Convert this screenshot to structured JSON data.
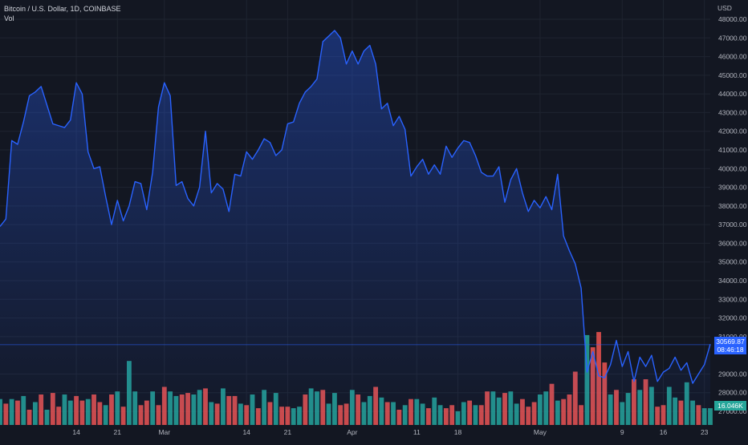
{
  "header": {
    "symbol_line": "Bitcoin / U.S. Dollar, 1D, COINBASE",
    "volume_label": "Vol"
  },
  "price_axis": {
    "currency": "USD",
    "ticks": [
      "48000.00",
      "47000.00",
      "46000.00",
      "45000.00",
      "44000.00",
      "43000.00",
      "42000.00",
      "41000.00",
      "40000.00",
      "39000.00",
      "38000.00",
      "37000.00",
      "36000.00",
      "35000.00",
      "34000.00",
      "33000.00",
      "32000.00",
      "31000.00",
      "29000.00",
      "28000.00",
      "27000.00"
    ],
    "current_price": "30569.87",
    "countdown": "08:46:18",
    "volume_value": "16.046K"
  },
  "time_axis": {
    "labels": [
      "14",
      "21",
      "Mar",
      "14",
      "21",
      "Apr",
      "11",
      "18",
      "May",
      "9",
      "16",
      "23"
    ]
  },
  "colors": {
    "background": "#131722",
    "line": "#2962ff",
    "up_volume": "#26a69a",
    "down_volume": "#ef5350",
    "price_badge": "#2962ff",
    "volume_badge": "#26a69a",
    "grid": "#1f2430"
  },
  "chart_data": {
    "type": "area",
    "series": [
      {
        "name": "Bitcoin / U.S. Dollar",
        "values": [
          36900,
          37300,
          41500,
          41300,
          42500,
          43900,
          44100,
          44400,
          43400,
          42400,
          42300,
          42200,
          42600,
          44600,
          44000,
          40900,
          40000,
          40100,
          38500,
          37000,
          38300,
          37200,
          38000,
          39300,
          39200,
          37800,
          39800,
          43300,
          44600,
          43900,
          39100,
          39300,
          38400,
          38000,
          39000,
          42000,
          38700,
          39200,
          38900,
          37700,
          39700,
          39600,
          40900,
          40500,
          41000,
          41600,
          41400,
          40700,
          41000,
          42400,
          42500,
          43500,
          44100,
          44400,
          44800,
          46800,
          47100,
          47400,
          47000,
          45600,
          46300,
          45600,
          46300,
          46600,
          45600,
          43200,
          43500,
          42300,
          42800,
          42100,
          39600,
          40100,
          40500,
          39700,
          40200,
          39700,
          41200,
          40600,
          41100,
          41500,
          41400,
          40700,
          39800,
          39600,
          39600,
          40100,
          38200,
          39400,
          40000,
          38700,
          37700,
          38300,
          37900,
          38500,
          37800,
          39700,
          36400,
          35600,
          34900,
          33600,
          29100,
          30200,
          28900,
          28800,
          29500,
          30800,
          29400,
          30200,
          28600,
          29900,
          29400,
          30000,
          28600,
          29100,
          29300,
          29900,
          29200,
          29600,
          28500,
          29000,
          29500,
          30600
        ]
      }
    ],
    "volume": {
      "values": [
        1.7,
        1.4,
        1.7,
        1.6,
        1.9,
        1.0,
        1.5,
        2.0,
        1.0,
        2.1,
        1.2,
        2.0,
        1.6,
        1.9,
        1.6,
        1.7,
        2.0,
        1.5,
        1.3,
        2.0,
        2.2,
        1.2,
        4.2,
        2.2,
        1.3,
        1.6,
        2.2,
        1.3,
        2.5,
        2.2,
        1.9,
        2.0,
        2.1,
        2.0,
        2.3,
        2.4,
        1.5,
        1.4,
        2.4,
        1.9,
        1.9,
        1.4,
        1.3,
        2.0,
        1.1,
        2.3,
        1.5,
        2.1,
        1.2,
        1.2,
        1.1,
        1.2,
        2.0,
        2.4,
        2.2,
        2.3,
        1.4,
        2.1,
        1.3,
        1.4,
        2.3,
        2.0,
        1.5,
        1.9,
        2.5,
        1.8,
        1.5,
        1.5,
        1.0,
        1.3,
        1.7,
        1.7,
        1.4,
        1.1,
        1.8,
        1.3,
        1.1,
        1.3,
        0.9,
        1.5,
        1.6,
        1.3,
        1.3,
        2.2,
        2.2,
        1.8,
        2.1,
        2.2,
        1.4,
        1.7,
        1.2,
        1.5,
        2.0,
        2.2,
        2.7,
        1.6,
        1.7,
        2.0,
        3.5,
        1.3,
        5.9,
        5.1,
        6.1,
        4.1,
        2.0,
        2.3,
        1.5,
        2.1,
        3.0,
        2.3,
        3.0,
        2.5,
        1.2,
        1.3,
        2.5,
        1.8,
        1.6,
        2.8,
        1.6,
        1.3,
        1.1,
        1.1
      ],
      "up": [
        1,
        0,
        1,
        0,
        1,
        0,
        1,
        0,
        1,
        0,
        0,
        1,
        1,
        0,
        0,
        1,
        0,
        0,
        1,
        0,
        1,
        0,
        1,
        1,
        0,
        0,
        1,
        0,
        0,
        1,
        1,
        0,
        0,
        1,
        1,
        0,
        1,
        0,
        1,
        0,
        0,
        1,
        0,
        1,
        0,
        1,
        0,
        1,
        0,
        0,
        1,
        1,
        0,
        1,
        1,
        0,
        1,
        1,
        0,
        0,
        1,
        0,
        1,
        1,
        0,
        1,
        0,
        1,
        0,
        1,
        0,
        1,
        1,
        0,
        1,
        1,
        0,
        0,
        1,
        1,
        0,
        1,
        0,
        0,
        1,
        1,
        0,
        1,
        1,
        0,
        0,
        0,
        1,
        1,
        0,
        1,
        0,
        0,
        0,
        0,
        1,
        0,
        0,
        0,
        1,
        0,
        1,
        1,
        0,
        1,
        0,
        1,
        0,
        0,
        1,
        1,
        0,
        1,
        1,
        0,
        1,
        1
      ]
    },
    "ylim": [
      26500,
      48300
    ],
    "grid": true,
    "legend": "top-left"
  }
}
